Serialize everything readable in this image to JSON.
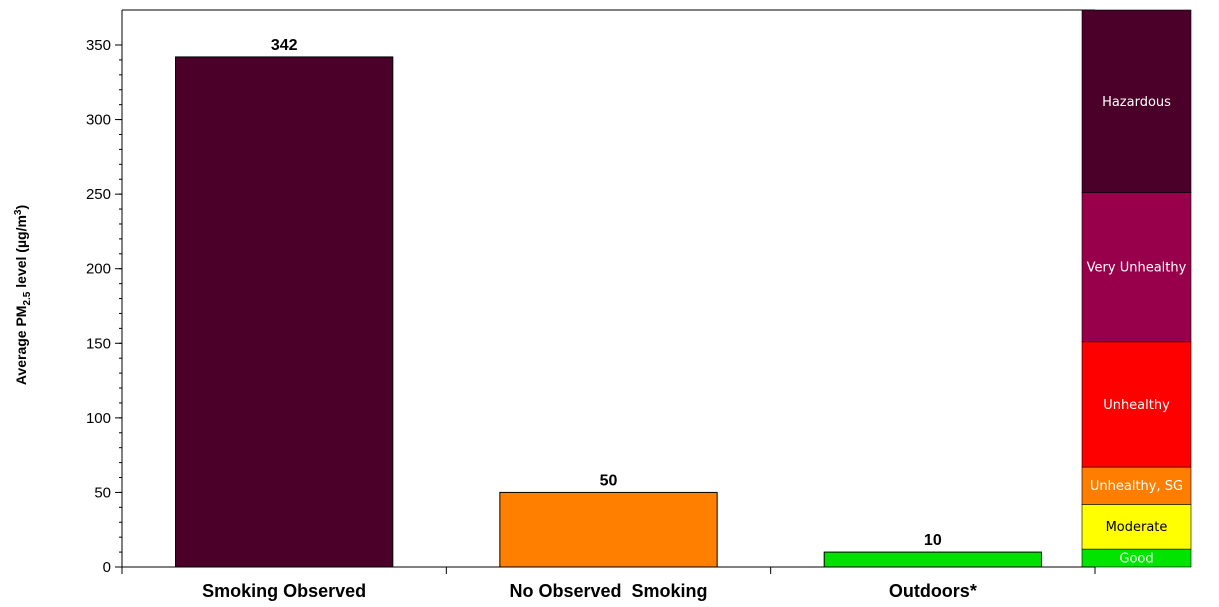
{
  "chart_data": {
    "type": "bar",
    "title": "",
    "ylabel": {
      "prefix": "Average PM",
      "subscript": "2.5",
      "suffix": " level (µg/m",
      "superscript": "3",
      "close": ")"
    },
    "xlabel": "",
    "ylim": [
      0,
      350
    ],
    "yticks": [
      0,
      50,
      100,
      150,
      200,
      250,
      300,
      350
    ],
    "grid": false,
    "legend": "none",
    "categories": [
      "Smoking Observed",
      "No Observed  Smoking",
      "Outdoors*"
    ],
    "values": [
      342,
      50,
      10
    ],
    "data_labels": [
      "342",
      "50",
      "10"
    ],
    "bar_colors": [
      "#4a0028",
      "#ff8000",
      "#00e000"
    ],
    "aqi_bands": [
      {
        "label": "Good",
        "from": 0,
        "to": 12,
        "color": "#00e400",
        "text_color": "#ffffff"
      },
      {
        "label": "Moderate",
        "from": 12,
        "to": 42,
        "color": "#ffff00",
        "text_color": "#000000"
      },
      {
        "label": "Unhealthy, SG",
        "from": 42,
        "to": 67,
        "color": "#ff7e00",
        "text_color": "#ffffff"
      },
      {
        "label": "Unhealthy",
        "from": 67,
        "to": 151,
        "color": "#ff0000",
        "text_color": "#ffffff"
      },
      {
        "label": "Very Unhealthy",
        "from": 151,
        "to": 251,
        "color": "#99004c",
        "text_color": "#ffffff"
      },
      {
        "label": "Hazardous",
        "from": 251,
        "to": 377,
        "color": "#4a0028",
        "text_color": "#ffffff"
      }
    ]
  }
}
